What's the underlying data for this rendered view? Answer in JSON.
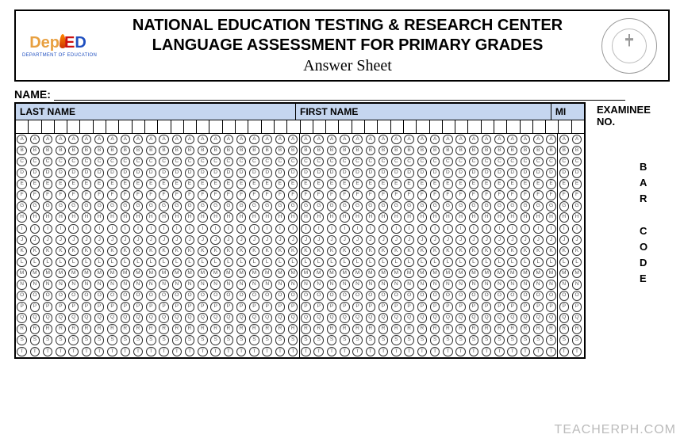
{
  "header": {
    "logo": {
      "text_left": "Dep",
      "text_e": "E",
      "text_d": "D",
      "subtitle": "DEPARTMENT OF EDUCATION"
    },
    "line1": "NATIONAL EDUCATION TESTING & RESEARCH CENTER",
    "line2": "LANGUAGE ASSESSMENT FOR PRIMARY GRADES",
    "subtitle": "Answer Sheet"
  },
  "name_label": "NAME:",
  "columns": {
    "last_name": {
      "label": "LAST NAME",
      "boxes": 22
    },
    "first_name": {
      "label": "FIRST NAME",
      "boxes": 20
    },
    "mi": {
      "label": "MI",
      "boxes": 2
    }
  },
  "bubble_letters": [
    "A",
    "B",
    "C",
    "D",
    "E",
    "F",
    "G",
    "H",
    "I",
    "J",
    "K",
    "L",
    "M",
    "N",
    "O",
    "P",
    "Q",
    "R",
    "S",
    "T"
  ],
  "right": {
    "examinee_label": "EXAMINEE NO.",
    "barcode_chars": [
      "B",
      "A",
      "R",
      "",
      "C",
      "O",
      "D",
      "E"
    ]
  },
  "watermark": "TEACHERPH.COM",
  "style": {
    "header_bg": "#c5d6ef",
    "total_boxes": 44
  }
}
